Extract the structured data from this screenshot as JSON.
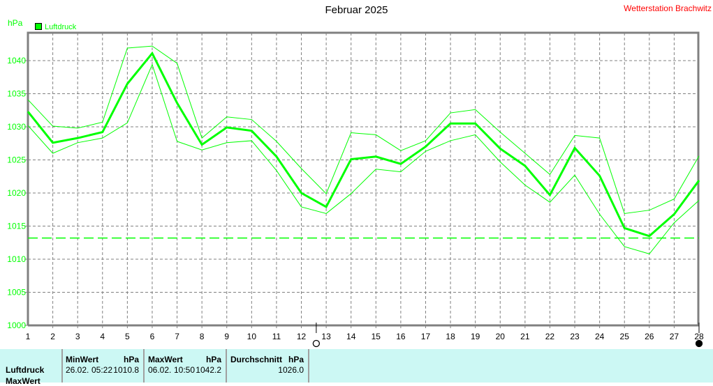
{
  "header": {
    "title": "Februar 2025",
    "station": "Wetterstation Brachwitz"
  },
  "chart_data": {
    "type": "line",
    "title": "Februar 2025",
    "ylabel": "hPa",
    "xlabel": "",
    "legend": {
      "placement": "top-left",
      "entries": [
        "Luftdruck"
      ]
    },
    "grid": true,
    "x": [
      1,
      2,
      3,
      4,
      5,
      6,
      7,
      8,
      9,
      10,
      11,
      12,
      13,
      14,
      15,
      16,
      17,
      18,
      19,
      20,
      21,
      22,
      23,
      24,
      25,
      26,
      27,
      28
    ],
    "xlim": [
      1,
      28
    ],
    "ylim": [
      1000,
      1044
    ],
    "yticks": [
      1000,
      1005,
      1010,
      1015,
      1020,
      1025,
      1030,
      1035,
      1040
    ],
    "series": [
      {
        "name": "Luftdruck",
        "role": "mean",
        "color": "#00ff00",
        "values": [
          1032.3,
          1027.6,
          1028.3,
          1029.2,
          1036.5,
          1041.1,
          1033.6,
          1027.3,
          1029.9,
          1029.4,
          1025.5,
          1020.0,
          1017.9,
          1025.1,
          1025.5,
          1024.4,
          1027.0,
          1030.5,
          1030.5,
          1026.7,
          1024.1,
          1019.7,
          1026.8,
          1022.6,
          1014.7,
          1013.5,
          1016.8,
          1021.9
        ]
      },
      {
        "role": "max",
        "color": "#00ff00",
        "values": [
          1034.1,
          1030.1,
          1029.8,
          1030.7,
          1041.9,
          1042.2,
          1039.6,
          1028.3,
          1031.5,
          1031.1,
          1027.8,
          1023.7,
          1019.9,
          1029.1,
          1028.8,
          1026.4,
          1027.9,
          1032.1,
          1032.6,
          1029.2,
          1026.0,
          1022.8,
          1028.7,
          1028.3,
          1016.9,
          1017.4,
          1019.1,
          1025.6
        ]
      },
      {
        "role": "min",
        "color": "#00ff00",
        "values": [
          1030.2,
          1026.0,
          1027.6,
          1028.3,
          1030.6,
          1039.4,
          1027.8,
          1026.5,
          1027.6,
          1027.9,
          1023.4,
          1017.9,
          1016.9,
          1019.9,
          1023.6,
          1023.2,
          1026.3,
          1027.9,
          1028.8,
          1024.7,
          1021.2,
          1018.6,
          1022.7,
          1016.8,
          1011.9,
          1010.8,
          1015.5,
          1018.9
        ]
      }
    ],
    "reference_line": {
      "value": 1013.2,
      "style": "dashed",
      "color": "#00ff00"
    },
    "markers": [
      {
        "x": 12.6,
        "symbol": "open-circle"
      },
      {
        "x": 28,
        "symbol": "filled-circle"
      }
    ]
  },
  "table": {
    "row_labels": [
      "Luftdruck",
      "MaxWert"
    ],
    "min": {
      "header": "MinWert",
      "unit": "hPa",
      "date": "26.02.",
      "time": "05:22",
      "value": "1010.8"
    },
    "max": {
      "header": "MaxWert",
      "unit": "hPa",
      "date": "06.02.",
      "time": "10:50",
      "value": "1042.2"
    },
    "avg": {
      "header": "Durchschnitt",
      "unit": "hPa",
      "value": "1026.0"
    }
  }
}
